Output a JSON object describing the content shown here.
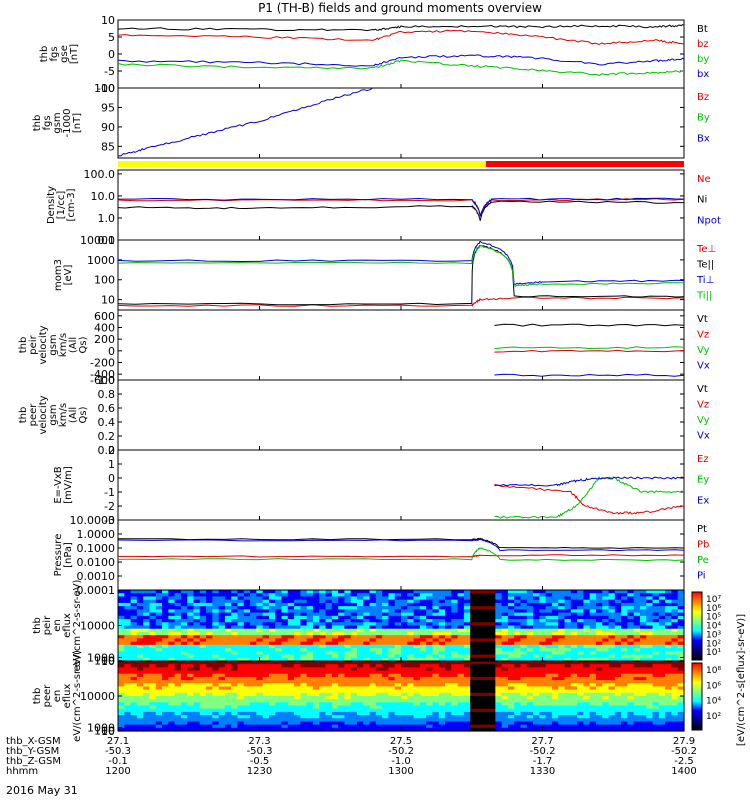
{
  "title": "P1 (TH-B) fields and ground moments overview",
  "date_label": "2016 May 31",
  "colors": {
    "black": "#000000",
    "red": "#e00000",
    "green": "#00c000",
    "blue": "#0000d0",
    "yellow": "#ffff00",
    "bar_red": "#ff0000"
  },
  "ephemeris": {
    "row_labels": [
      "thb_X-GSM",
      "thb_Y-GSM",
      "thb_Z-GSM",
      "hhmm"
    ],
    "columns": [
      {
        "x": "27.1",
        "y": "-50.3",
        "z": "-0.1",
        "t": "1200"
      },
      {
        "x": "27.3",
        "y": "-50.3",
        "z": "-0.5",
        "t": "1230"
      },
      {
        "x": "27.5",
        "y": "-50.2",
        "z": "-1.0",
        "t": "1300"
      },
      {
        "x": "27.7",
        "y": "-50.2",
        "z": "-1.7",
        "t": "1330"
      },
      {
        "x": "27.9",
        "y": "-50.2",
        "z": "-2.5",
        "t": "1400"
      }
    ]
  },
  "colorbar": {
    "label": "[eV/(cm^2-s[eflux]-sr-eV)]",
    "ticks_top": [
      "10⁷",
      "10⁶",
      "10⁵",
      "10⁴",
      "10³",
      "10²",
      "10¹"
    ],
    "ticks_bottom": [
      "10⁸",
      "10⁶",
      "10⁴",
      "10²"
    ]
  },
  "chart_data": [
    {
      "type": "line",
      "ylabel": "thb fgs gse [nT]",
      "ylim": [
        -10,
        10
      ],
      "yticks": [
        "10",
        "5",
        "0",
        "-5",
        "-10"
      ],
      "legend": [
        {
          "name": "Bt",
          "color": "black"
        },
        {
          "name": "bz",
          "color": "red"
        },
        {
          "name": "by",
          "color": "green"
        },
        {
          "name": "bx",
          "color": "blue"
        }
      ],
      "x_hours": [
        12.0,
        12.5,
        12.9,
        13.0,
        13.25,
        13.45,
        13.7,
        13.9,
        14.0
      ],
      "series": [
        {
          "name": "Bt",
          "values": [
            7.5,
            7.2,
            7.0,
            8.0,
            8.2,
            8.0,
            8.3,
            8.0,
            8.5
          ]
        },
        {
          "name": "bz",
          "values": [
            5.5,
            5.0,
            4.0,
            6.5,
            6.8,
            5.5,
            3.0,
            4.0,
            3.0
          ]
        },
        {
          "name": "by",
          "values": [
            -3.0,
            -4.0,
            -4.2,
            -2.0,
            -3.5,
            -4.5,
            -6.0,
            -5.5,
            -5.0
          ]
        },
        {
          "name": "bx",
          "values": [
            -2.0,
            -2.5,
            -3.5,
            -1.0,
            -0.5,
            -1.0,
            -3.0,
            -2.0,
            -1.5
          ]
        }
      ]
    },
    {
      "type": "line",
      "ylabel": "thb fgs gsm -1000 [nT]",
      "ylim": [
        82,
        100
      ],
      "yticks": [
        "100",
        "95",
        "90",
        "85"
      ],
      "legend": [
        {
          "name": "Bz",
          "color": "red"
        },
        {
          "name": "By",
          "color": "green"
        },
        {
          "name": "Bx",
          "color": "blue"
        }
      ],
      "series": [
        {
          "name": "Bx",
          "x_hours": [
            12.0,
            12.1,
            12.3,
            12.5,
            12.7,
            12.9
          ],
          "values": [
            82.5,
            84.5,
            88.0,
            91.5,
            96.0,
            100.0
          ]
        }
      ]
    },
    {
      "type": "bar",
      "segments": [
        {
          "from": 12.0,
          "to": 13.3,
          "color": "yellow"
        },
        {
          "from": 13.3,
          "to": 14.0,
          "color": "bar_red"
        }
      ]
    },
    {
      "type": "line",
      "scale": "log",
      "ylabel": "Density [1/cc] [cm-3]",
      "ylim": [
        0.1,
        150
      ],
      "yticks": [
        "100.0",
        "10.0",
        "1.0",
        "0.1"
      ],
      "legend": [
        {
          "name": "Ne",
          "color": "red"
        },
        {
          "name": "Ni",
          "color": "black"
        },
        {
          "name": "Npot",
          "color": "blue"
        }
      ],
      "series": [
        {
          "name": "Ne",
          "x_hours": [
            12.0,
            13.25,
            13.28,
            13.32,
            14.0
          ],
          "values": [
            6.5,
            6.5,
            1.2,
            6.5,
            7.0
          ]
        },
        {
          "name": "Ni",
          "x_hours": [
            12.0,
            12.5,
            13.25,
            13.28,
            13.32,
            14.0
          ],
          "values": [
            3.0,
            2.8,
            3.5,
            0.8,
            5.5,
            5.0
          ]
        },
        {
          "name": "Npot",
          "x_hours": [
            12.0,
            13.25,
            13.28,
            13.32,
            14.0
          ],
          "values": [
            7.0,
            7.0,
            1.2,
            7.0,
            7.2
          ]
        }
      ]
    },
    {
      "type": "line",
      "scale": "log",
      "ylabel": "mom3 [eV]",
      "ylim": [
        3,
        10000
      ],
      "yticks": [
        "10000",
        "1000",
        "100",
        "10"
      ],
      "legend": [
        {
          "name": "Te⊥",
          "color": "red"
        },
        {
          "name": "Te||",
          "color": "black"
        },
        {
          "name": "Ti⊥",
          "color": "blue"
        },
        {
          "name": "Ti||",
          "color": "green"
        }
      ],
      "series": [
        {
          "name": "Te⊥",
          "x_hours": [
            12.0,
            13.25,
            13.28,
            13.4,
            14.0
          ],
          "values": [
            5,
            5,
            10,
            12,
            12
          ]
        },
        {
          "name": "Te||",
          "x_hours": [
            12.0,
            13.25,
            13.28,
            13.4,
            14.0
          ],
          "values": [
            6,
            6,
            5500,
            15,
            14
          ]
        },
        {
          "name": "Ti⊥",
          "x_hours": [
            12.0,
            13.25,
            13.28,
            13.4,
            13.5,
            14.0
          ],
          "values": [
            900,
            900,
            8000,
            60,
            80,
            90
          ]
        },
        {
          "name": "Ti||",
          "x_hours": [
            12.0,
            13.25,
            13.28,
            13.4,
            13.5,
            14.0
          ],
          "values": [
            700,
            700,
            5000,
            50,
            60,
            70
          ]
        }
      ]
    },
    {
      "type": "line",
      "ylabel": "thb peir velocity gsm km/s (All Qs)",
      "ylim": [
        -500,
        700
      ],
      "yticks": [
        "600",
        "400",
        "200",
        "0",
        "-200",
        "-400",
        "-600"
      ],
      "legend": [
        {
          "name": "Vt",
          "color": "black"
        },
        {
          "name": "Vz",
          "color": "red"
        },
        {
          "name": "Vy",
          "color": "green"
        },
        {
          "name": "Vx",
          "color": "blue"
        }
      ],
      "series": [
        {
          "name": "Vt",
          "x_hours": [
            13.33,
            14.0
          ],
          "values": [
            440,
            440
          ]
        },
        {
          "name": "Vz",
          "x_hours": [
            13.33,
            14.0
          ],
          "values": [
            -5,
            5
          ]
        },
        {
          "name": "Vy",
          "x_hours": [
            13.33,
            14.0
          ],
          "values": [
            50,
            60
          ]
        },
        {
          "name": "Vx",
          "x_hours": [
            13.33,
            14.0
          ],
          "values": [
            -420,
            -420
          ]
        }
      ]
    },
    {
      "type": "line",
      "ylabel": "thb peer velocity gsm km/s (All Qs)",
      "ylim": [
        0,
        1
      ],
      "yticks": [
        "1.0",
        "0.8",
        "0.6",
        "0.4",
        "0.2",
        "0.0"
      ],
      "legend": [
        {
          "name": "Vt",
          "color": "black"
        },
        {
          "name": "Vz",
          "color": "red"
        },
        {
          "name": "Vy",
          "color": "green"
        },
        {
          "name": "Vx",
          "color": "blue"
        }
      ],
      "series": []
    },
    {
      "type": "line",
      "ylabel": "E=-VxB [mV/m]",
      "ylim": [
        -3,
        2
      ],
      "yticks": [
        "2",
        "1",
        "0",
        "-1",
        "-2",
        "-3"
      ],
      "legend": [
        {
          "name": "Ez",
          "color": "red"
        },
        {
          "name": "Ey",
          "color": "green"
        },
        {
          "name": "Ex",
          "color": "blue"
        }
      ],
      "series": [
        {
          "name": "Ez",
          "x_hours": [
            13.33,
            13.6,
            13.65,
            13.75,
            13.85,
            14.0
          ],
          "values": [
            -0.5,
            -1.0,
            -2.0,
            -2.5,
            -2.5,
            -2.0
          ]
        },
        {
          "name": "Ey",
          "x_hours": [
            13.33,
            13.55,
            13.62,
            13.7,
            13.75,
            13.85,
            14.0
          ],
          "values": [
            -2.8,
            -2.8,
            -2.0,
            0.0,
            0.0,
            -1.0,
            -1.0
          ]
        },
        {
          "name": "Ex",
          "x_hours": [
            13.33,
            13.55,
            13.62,
            13.7,
            13.85,
            14.0
          ],
          "values": [
            -0.5,
            -0.5,
            -0.2,
            0.0,
            0.0,
            0.0
          ]
        }
      ]
    },
    {
      "type": "line",
      "scale": "log",
      "ylabel": "Pressure [nPa]",
      "ylim": [
        0.0001,
        10
      ],
      "yticks": [
        "10.0000",
        "1.0000",
        "0.1000",
        "0.0100",
        "0.0010",
        "0.0001"
      ],
      "legend": [
        {
          "name": "Pt",
          "color": "black"
        },
        {
          "name": "Pb",
          "color": "red"
        },
        {
          "name": "Pe",
          "color": "green"
        },
        {
          "name": "Pi",
          "color": "blue"
        }
      ],
      "series": [
        {
          "name": "Pt",
          "x_hours": [
            12.0,
            13.25,
            13.28,
            13.35,
            14.0
          ],
          "values": [
            0.42,
            0.42,
            0.45,
            0.1,
            0.1
          ]
        },
        {
          "name": "Pb",
          "x_hours": [
            12.0,
            13.25,
            13.28,
            14.0
          ],
          "values": [
            0.025,
            0.025,
            0.03,
            0.03
          ]
        },
        {
          "name": "Pe",
          "x_hours": [
            12.0,
            13.25,
            13.28,
            13.35,
            14.0
          ],
          "values": [
            0.016,
            0.016,
            0.1,
            0.014,
            0.014
          ]
        },
        {
          "name": "Pi",
          "x_hours": [
            12.0,
            13.25,
            13.28,
            13.35,
            14.0
          ],
          "values": [
            0.35,
            0.35,
            0.4,
            0.07,
            0.07
          ]
        }
      ]
    },
    {
      "type": "heatmap",
      "ylabel": "thb peir en eflux eV/(cm^2-s-sr-eV)",
      "ylim": [
        7,
        20000
      ],
      "yticks": [
        "10000",
        "1000",
        "100",
        "10"
      ]
    },
    {
      "type": "heatmap",
      "ylabel": "thb peer en eflux eV/(cm^2-s-sr-eV)",
      "ylim": [
        7,
        20000
      ],
      "yticks": [
        "10000",
        "1000",
        "100",
        "10"
      ]
    }
  ]
}
